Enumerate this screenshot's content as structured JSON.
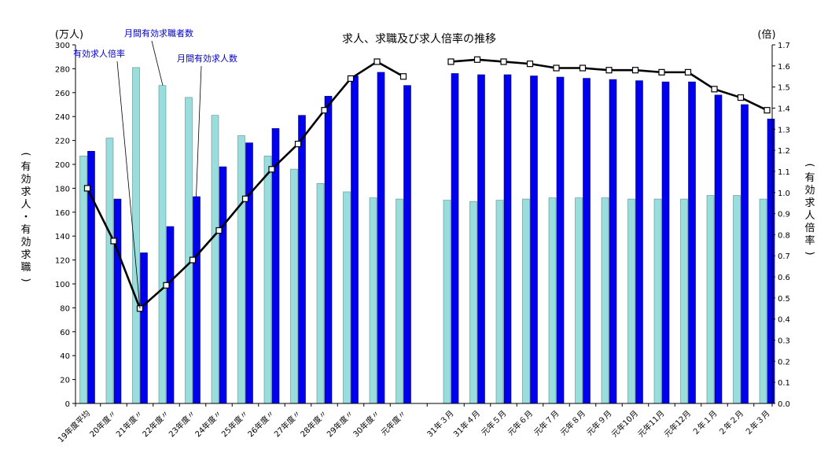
{
  "chart_data": {
    "type": "bar",
    "title": "求人、求職及び求人倍率の推移",
    "left_axis": {
      "unit_label": "(万人)",
      "title": [
        "(",
        "有",
        "効",
        "求",
        "人",
        "・",
        "有",
        "効",
        "求",
        "職",
        ")"
      ],
      "min": 0,
      "max": 300,
      "step": 20,
      "ticks": [
        "0",
        "20",
        "40",
        "60",
        "80",
        "100",
        "120",
        "140",
        "160",
        "180",
        "200",
        "220",
        "240",
        "260",
        "280",
        "300"
      ]
    },
    "right_axis": {
      "unit_label": "(倍)",
      "title": [
        "(",
        "有",
        "効",
        "求",
        "人",
        "倍",
        "率",
        ")"
      ],
      "min": 0,
      "max": 1.7,
      "step": 0.1,
      "ticks": [
        "0.0",
        "0.1",
        "0.2",
        "0.3",
        "0.4",
        "0.5",
        "0.6",
        "0.7",
        "0.8",
        "0.9",
        "1.0",
        "1.1",
        "1.2",
        "1.3",
        "1.4",
        "1.5",
        "1.6",
        "1.7"
      ]
    },
    "categories": [
      "19年度平均",
      "20年度〃",
      "21年度〃",
      "22年度〃",
      "23年度〃",
      "24年度〃",
      "25年度〃",
      "26年度〃",
      "27年度〃",
      "28年度〃",
      "29年度〃",
      "30年度〃",
      "元年度〃",
      "31年３月",
      "31年４月",
      "元年５月",
      "元年６月",
      "元年７月",
      "元年８月",
      "元年９月",
      "元年10月",
      "元年11月",
      "元年12月",
      "２年１月",
      "２年２月",
      "２年３月"
    ],
    "gap_after_index": 12,
    "series": [
      {
        "name": "月間有効求職者数",
        "color": "#99dddd",
        "axis": "left",
        "values": [
          207,
          222,
          281,
          266,
          256,
          241,
          224,
          207,
          196,
          184,
          177,
          172,
          171,
          170,
          169,
          170,
          171,
          172,
          172,
          172,
          171,
          171,
          171,
          174,
          174,
          171
        ]
      },
      {
        "name": "月間有効求人数",
        "color": "#0000ee",
        "axis": "left",
        "values": [
          211,
          171,
          126,
          148,
          173,
          198,
          218,
          230,
          241,
          257,
          274,
          277,
          266,
          276,
          275,
          275,
          274,
          273,
          272,
          271,
          270,
          269,
          269,
          258,
          250,
          238
        ]
      },
      {
        "name": "有効求人倍率",
        "color": "#000000",
        "axis": "right",
        "type": "line",
        "values": [
          1.02,
          0.77,
          0.45,
          0.56,
          0.68,
          0.82,
          0.97,
          1.11,
          1.23,
          1.39,
          1.54,
          1.62,
          1.55,
          1.62,
          1.63,
          1.62,
          1.61,
          1.59,
          1.59,
          1.58,
          1.58,
          1.57,
          1.57,
          1.49,
          1.45,
          1.39
        ]
      }
    ],
    "annotations": [
      {
        "text": "有効求人倍率",
        "series_index": 2,
        "point_index": 2
      },
      {
        "text": "月間有効求職者数",
        "series_index": 0,
        "point_index": 3
      },
      {
        "text": "月間有効求人数",
        "series_index": 1,
        "point_index": 4
      }
    ],
    "grid": false,
    "legend": "none"
  }
}
